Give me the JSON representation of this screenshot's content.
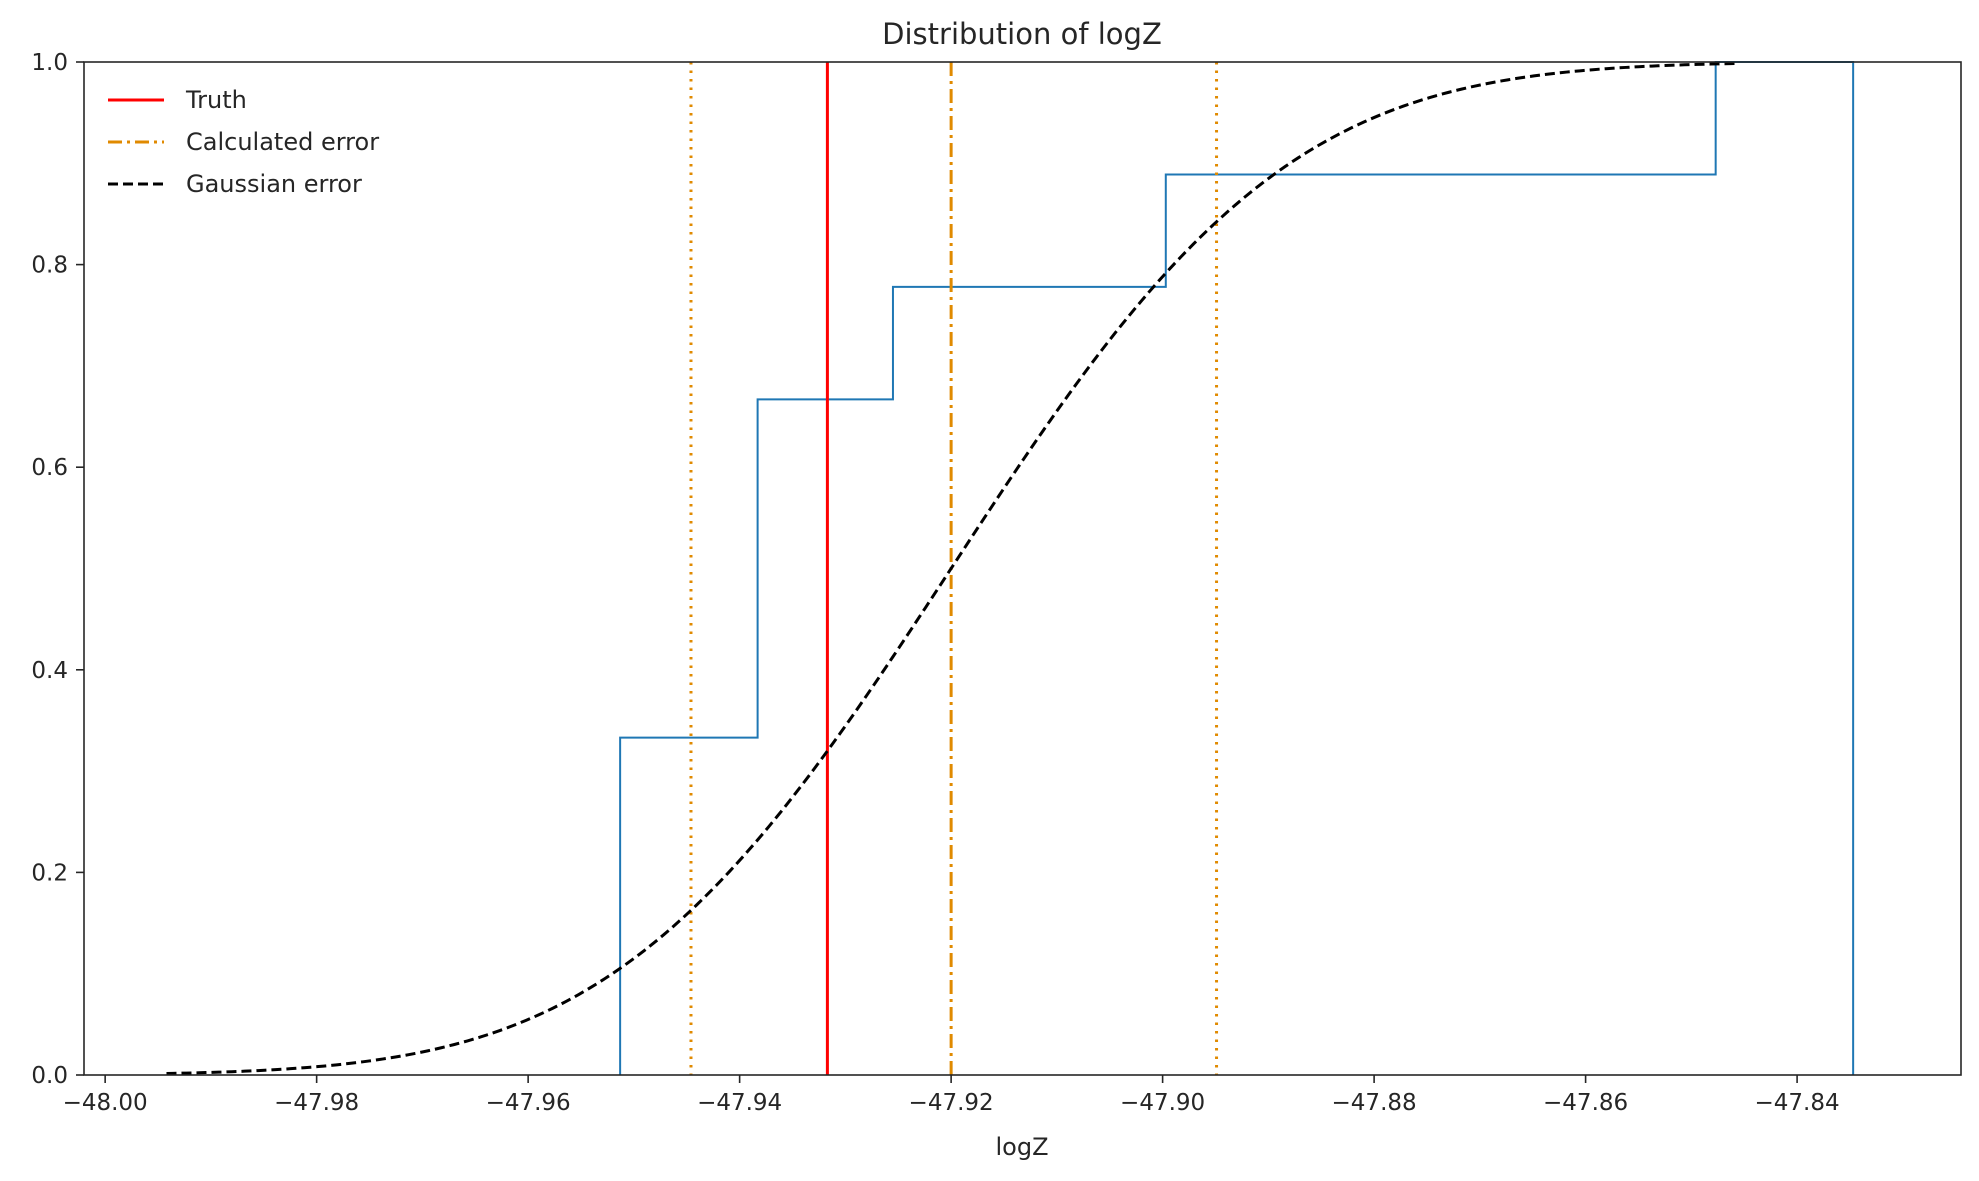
{
  "chart_data": {
    "type": "line",
    "title": "Distribution of logZ",
    "xlabel": "logZ",
    "ylabel": "",
    "xlim": [
      -48.002,
      -47.8245
    ],
    "ylim": [
      0.0,
      1.0
    ],
    "x_ticks": [
      -48.0,
      -47.98,
      -47.96,
      -47.94,
      -47.92,
      -47.9,
      -47.88,
      -47.86,
      -47.84
    ],
    "x_tick_labels": [
      "−48.00",
      "−47.98",
      "−47.96",
      "−47.94",
      "−47.92",
      "−47.90",
      "−47.88",
      "−47.86",
      "−47.84"
    ],
    "y_ticks": [
      0.0,
      0.2,
      0.4,
      0.6,
      0.8,
      1.0
    ],
    "y_tick_labels": [
      "0.0",
      "0.2",
      "0.4",
      "0.6",
      "0.8",
      "1.0"
    ],
    "grid": false,
    "legend_position": "top-left",
    "series": [
      {
        "name": "",
        "kind": "ecdf-step",
        "color": "#1f77b4",
        "x": [
          -47.9513,
          -47.9513,
          -47.9383,
          -47.9383,
          -47.9255,
          -47.9255,
          -47.8997,
          -47.8997,
          -47.8477,
          -47.8477,
          -47.8347,
          -47.8347
        ],
        "y": [
          0.0,
          0.333,
          0.333,
          0.667,
          0.667,
          0.778,
          0.778,
          0.889,
          0.889,
          1.0,
          1.0,
          0.0
        ]
      },
      {
        "name": "Truth",
        "kind": "vline",
        "color": "#ff0000",
        "style": "solid",
        "x": -47.9317
      },
      {
        "name": "Calculated error",
        "kind": "vline",
        "color": "#e08a00",
        "style": "dashdot",
        "x": -47.92
      },
      {
        "name": "",
        "kind": "vline",
        "color": "#e08a00",
        "style": "dotted",
        "x": -47.9446
      },
      {
        "name": "",
        "kind": "vline",
        "color": "#e08a00",
        "style": "dotted",
        "x": -47.8949
      },
      {
        "name": "Gaussian error",
        "kind": "normal-cdf",
        "color": "#000000",
        "style": "dashed",
        "mean": -47.92,
        "sigma": 0.025,
        "x_range": [
          -47.9942,
          -47.8457
        ]
      }
    ],
    "colors": {
      "ecdf": "#1f77b4",
      "truth": "#ff0000",
      "calculated": "#e08a00",
      "gaussian": "#000000",
      "axes": "#262626"
    }
  }
}
